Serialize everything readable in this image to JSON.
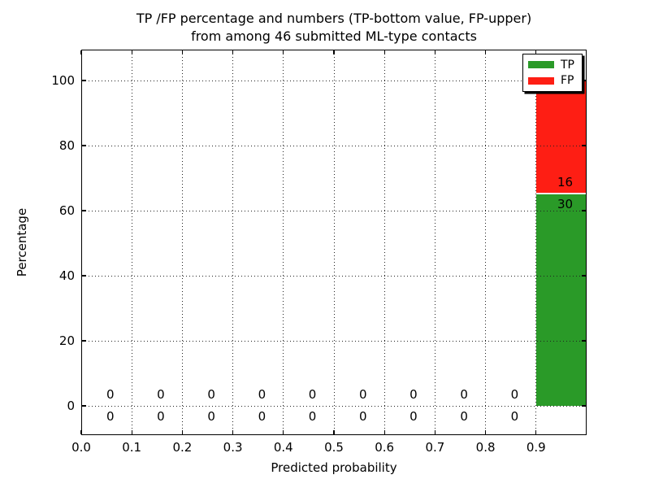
{
  "chart_data": {
    "type": "bar",
    "stacked": true,
    "title_lines": [
      "TP /FP percentage and numbers (TP-bottom value, FP-upper)",
      "from among 46 submitted ML-type contacts"
    ],
    "xlabel": "Predicted probability",
    "ylabel": "Percentage",
    "total_contacts": 46,
    "bin_width": 0.1,
    "bin_starts": [
      0.0,
      0.1,
      0.2,
      0.3,
      0.4,
      0.5,
      0.6,
      0.7,
      0.8,
      0.9
    ],
    "series": [
      {
        "name": "TP",
        "color": "#2a9a28",
        "counts": [
          0,
          0,
          0,
          0,
          0,
          0,
          0,
          0,
          0,
          30
        ]
      },
      {
        "name": "FP",
        "color": "#fe1e14",
        "counts": [
          0,
          0,
          0,
          0,
          0,
          0,
          0,
          0,
          0,
          16
        ]
      }
    ],
    "xticks": [
      0.0,
      0.1,
      0.2,
      0.3,
      0.4,
      0.5,
      0.6,
      0.7,
      0.8,
      0.9
    ],
    "xtick_labels": [
      "0.0",
      "0.1",
      "0.2",
      "0.3",
      "0.4",
      "0.5",
      "0.6",
      "0.7",
      "0.8",
      "0.9"
    ],
    "yticks": [
      0,
      20,
      40,
      60,
      80,
      100
    ],
    "ytick_labels": [
      "0",
      "20",
      "40",
      "60",
      "80",
      "100"
    ],
    "xlim": [
      0.0,
      1.0
    ],
    "ylim": [
      -9.0,
      109.5
    ],
    "grid": "dotted",
    "legend": {
      "location": "upper right",
      "entries": [
        "TP",
        "FP"
      ]
    }
  }
}
